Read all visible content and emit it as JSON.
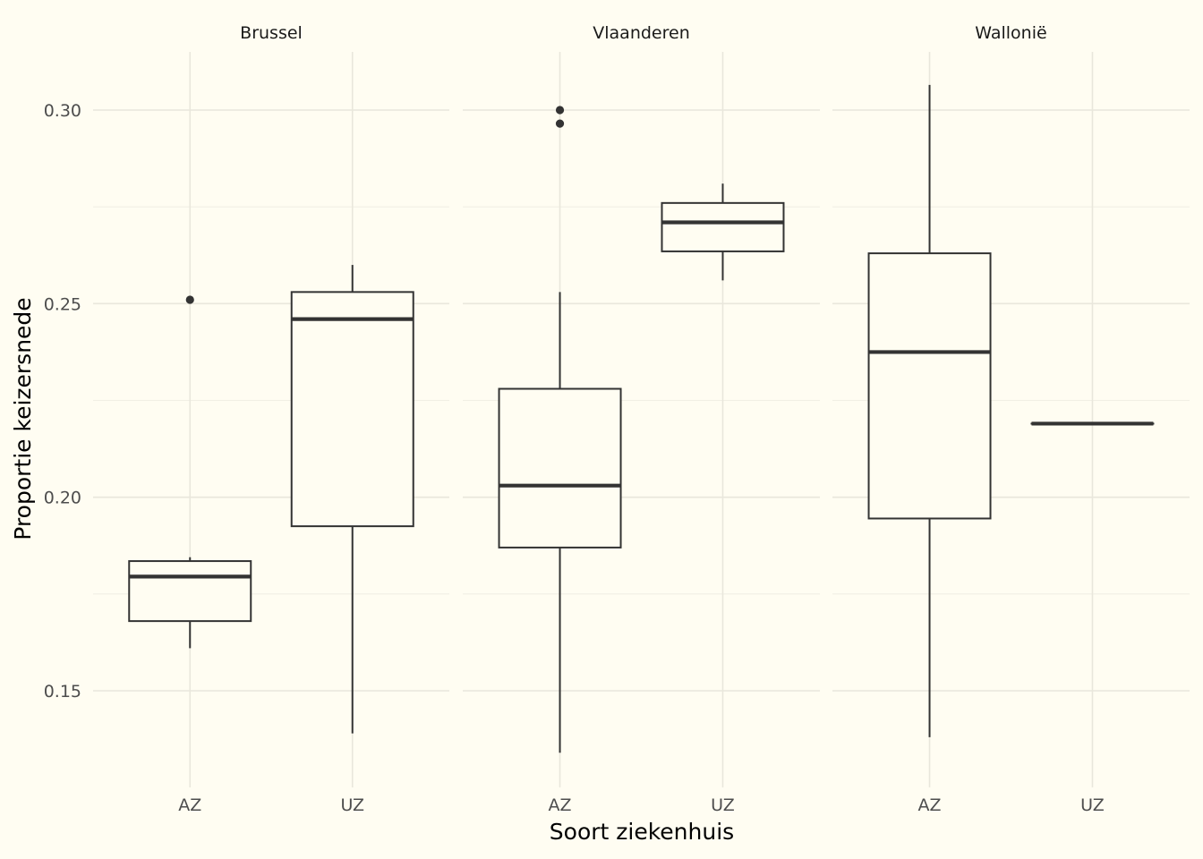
{
  "chart_data": {
    "type": "boxplot",
    "xlabel": "Soort ziekenhuis",
    "ylabel": "Proportie keizersnede",
    "ylim": [
      0.125,
      0.315
    ],
    "y_ticks": [
      "0.15",
      "0.20",
      "0.25",
      "0.30"
    ],
    "categories": [
      "AZ",
      "UZ"
    ],
    "grid": true,
    "colors": {
      "background": "#fffdf2",
      "box_line": "#333333",
      "grid": "#e9e7dc"
    },
    "panels": [
      {
        "name": "Brussel",
        "boxes": [
          {
            "category": "AZ",
            "min": 0.161,
            "q1": 0.168,
            "median": 0.1795,
            "q3": 0.1835,
            "max": 0.1845,
            "outliers": [
              0.251
            ]
          },
          {
            "category": "UZ",
            "min": 0.139,
            "q1": 0.1925,
            "median": 0.246,
            "q3": 0.253,
            "max": 0.26,
            "outliers": []
          }
        ]
      },
      {
        "name": "Vlaanderen",
        "boxes": [
          {
            "category": "AZ",
            "min": 0.134,
            "q1": 0.187,
            "median": 0.203,
            "q3": 0.228,
            "max": 0.253,
            "outliers": [
              0.3,
              0.2965
            ]
          },
          {
            "category": "UZ",
            "min": 0.256,
            "q1": 0.2635,
            "median": 0.271,
            "q3": 0.276,
            "max": 0.281,
            "outliers": []
          }
        ]
      },
      {
        "name": "Wallonië",
        "boxes": [
          {
            "category": "AZ",
            "min": 0.138,
            "q1": 0.1945,
            "median": 0.2375,
            "q3": 0.263,
            "max": 0.3065,
            "outliers": []
          },
          {
            "category": "UZ",
            "min": 0.219,
            "q1": 0.219,
            "median": 0.219,
            "q3": 0.219,
            "max": 0.219,
            "outliers": []
          }
        ]
      }
    ]
  }
}
